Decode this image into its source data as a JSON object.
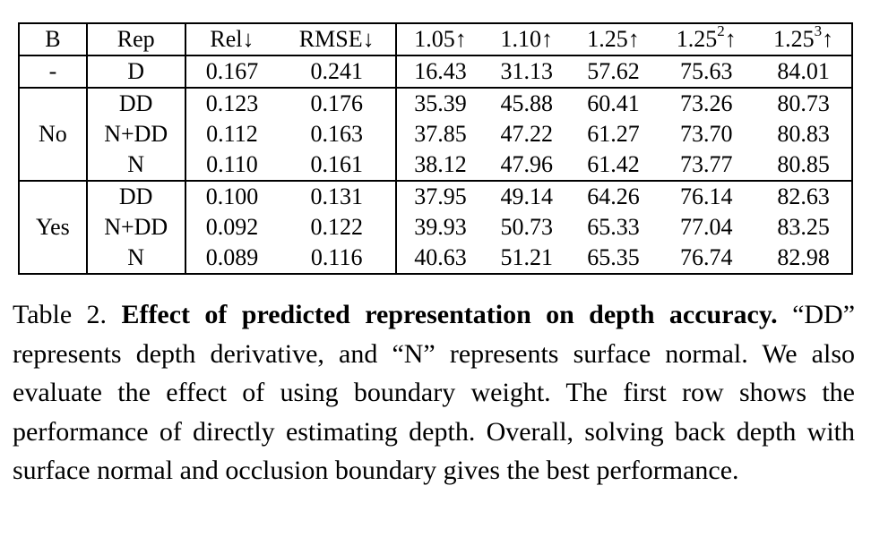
{
  "table": {
    "headers": [
      "B",
      "Rep",
      "Rel↓",
      "RMSE↓",
      "1.05↑",
      "1.10↑",
      "1.25↑",
      "1.25",
      "2",
      "↑",
      "1.25",
      "3",
      "↑"
    ],
    "col_b": {
      "dash": "-",
      "no": "No",
      "yes": "Yes"
    },
    "rows": [
      [
        "D",
        "0.167",
        "0.241",
        "16.43",
        "31.13",
        "57.62",
        "75.63",
        "84.01"
      ],
      [
        "DD",
        "0.123",
        "0.176",
        "35.39",
        "45.88",
        "60.41",
        "73.26",
        "80.73"
      ],
      [
        "N+DD",
        "0.112",
        "0.163",
        "37.85",
        "47.22",
        "61.27",
        "73.70",
        "80.83"
      ],
      [
        "N",
        "0.110",
        "0.161",
        "38.12",
        "47.96",
        "61.42",
        "73.77",
        "80.85"
      ],
      [
        "DD",
        "0.100",
        "0.131",
        "37.95",
        "49.14",
        "64.26",
        "76.14",
        "82.63"
      ],
      [
        "N+DD",
        "0.092",
        "0.122",
        "39.93",
        "50.73",
        "65.33",
        "77.04",
        "83.25"
      ],
      [
        "N",
        "0.089",
        "0.116",
        "40.63",
        "51.21",
        "65.35",
        "76.74",
        "82.98"
      ]
    ]
  },
  "caption": {
    "label": "Table 2.",
    "title": "Effect of predicted representation on depth accuracy.",
    "body": "“DD” represents depth derivative, and “N” represents surface normal. We also evaluate the effect of using boundary weight. The first row shows the performance of directly estimating depth. Overall, solving back depth with surface normal and occlusion boundary gives the best performance."
  }
}
